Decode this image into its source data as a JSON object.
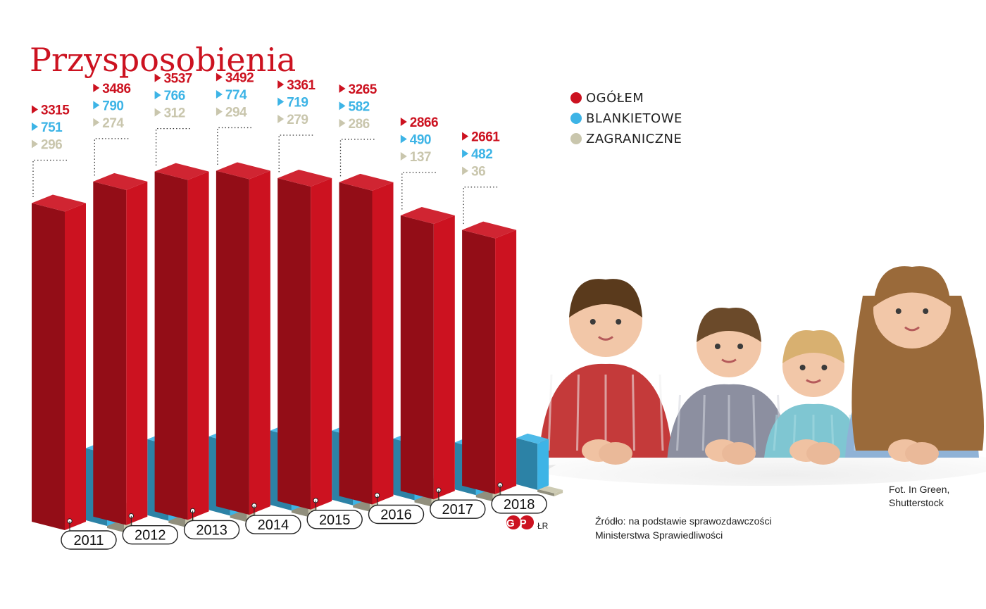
{
  "title": "Przysposobienia",
  "colors": {
    "ogolem": "#cc1220",
    "blankietowe": "#3db4e6",
    "zagraniczne": "#c9c6ad"
  },
  "legend": [
    {
      "label": "OGÓŁEM",
      "color": "#cc1220"
    },
    {
      "label": "BLANKIETOWE",
      "color": "#3db4e6"
    },
    {
      "label": "ZAGRANICZNE",
      "color": "#c9c6ad"
    }
  ],
  "chart_data": {
    "type": "bar",
    "title": "Przysposobienia",
    "categories": [
      "2011",
      "2012",
      "2013",
      "2014",
      "2015",
      "2016",
      "2017",
      "2018"
    ],
    "series": [
      {
        "name": "OGÓŁEM",
        "values": [
          3315,
          3486,
          3537,
          3492,
          3361,
          3265,
          2866,
          2661
        ]
      },
      {
        "name": "BLANKIETOWE",
        "values": [
          751,
          790,
          766,
          774,
          719,
          582,
          490,
          482
        ]
      },
      {
        "name": "ZAGRANICZNE",
        "values": [
          296,
          274,
          312,
          294,
          279,
          286,
          137,
          36
        ]
      }
    ]
  },
  "source": {
    "line1": "Źródło: na podstawie  sprawozdawczości",
    "line2": "Ministerstwa  Sprawiedliwości"
  },
  "photo_credit": {
    "line1": "Fot. In Green,",
    "line2": "Shutterstock"
  },
  "logo": {
    "text": "GP",
    "initials": "ŁR"
  }
}
